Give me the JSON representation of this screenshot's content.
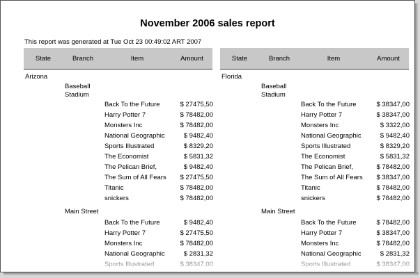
{
  "report": {
    "title": "November 2006 sales report",
    "generated": "This report was generated at Tue Oct 23 00:49:02 ART 2007"
  },
  "headers": {
    "state": "State",
    "branch": "Branch",
    "item": "Item",
    "amount": "Amount"
  },
  "left": {
    "state": "Arizona",
    "branches": [
      {
        "name": "Baseball Stadium",
        "rows": [
          {
            "item": "Back To the Future",
            "amount": "$ 27475,50"
          },
          {
            "item": "Harry Potter 7",
            "amount": "$ 78482,00"
          },
          {
            "item": "Monsters Inc",
            "amount": "$ 78482,00"
          },
          {
            "item": "National Geographic",
            "amount": "$ 9482,40"
          },
          {
            "item": "Sports Illustrated",
            "amount": "$ 8329,20"
          },
          {
            "item": "The Economist",
            "amount": "$ 5831,32"
          },
          {
            "item": "The Pelican Brief,",
            "amount": "$ 9482,40"
          },
          {
            "item": "The Sum of All Fears",
            "amount": "$ 27475,50"
          },
          {
            "item": "Titanic",
            "amount": "$ 78482,00"
          },
          {
            "item": "snickers",
            "amount": "$ 78482,00"
          }
        ]
      },
      {
        "name": "Main Street",
        "rows": [
          {
            "item": "Back To the Future",
            "amount": "$ 9482,40"
          },
          {
            "item": "Harry Potter 7",
            "amount": "$ 27475,50"
          },
          {
            "item": "Monsters Inc",
            "amount": "$ 78482,00"
          },
          {
            "item": "National Geographic",
            "amount": "$ 2831,32"
          },
          {
            "item": "Sports Illustrated",
            "amount": "$ 38347,00"
          }
        ]
      }
    ]
  },
  "right": {
    "state": "Florida",
    "branches": [
      {
        "name": "Baseball Stadium",
        "rows": [
          {
            "item": "Back To the Future",
            "amount": "$ 38347,00"
          },
          {
            "item": "Harry Potter 7",
            "amount": "$ 38347,00"
          },
          {
            "item": "Monsters Inc",
            "amount": "$ 3322,00"
          },
          {
            "item": "National Geographic",
            "amount": "$ 9482,40"
          },
          {
            "item": "Sports Illustrated",
            "amount": "$ 8329,20"
          },
          {
            "item": "The Economist",
            "amount": "$ 5831,32"
          },
          {
            "item": "The Pelican Brief,",
            "amount": "$ 78482,00"
          },
          {
            "item": "The Sum of All Fears",
            "amount": "$ 38347,00"
          },
          {
            "item": "Titanic",
            "amount": "$ 78482,00"
          },
          {
            "item": "snickers",
            "amount": "$ 78482,00"
          }
        ]
      },
      {
        "name": "Main Street",
        "rows": [
          {
            "item": "Back To the Future",
            "amount": "$ 78482,00"
          },
          {
            "item": "Harry Potter 7",
            "amount": "$ 38347,00"
          },
          {
            "item": "Monsters Inc",
            "amount": "$ 78482,00"
          },
          {
            "item": "National Geographic",
            "amount": "$ 2831,32"
          },
          {
            "item": "Sports Illustrated",
            "amount": "$ 38347,00"
          }
        ]
      }
    ]
  }
}
